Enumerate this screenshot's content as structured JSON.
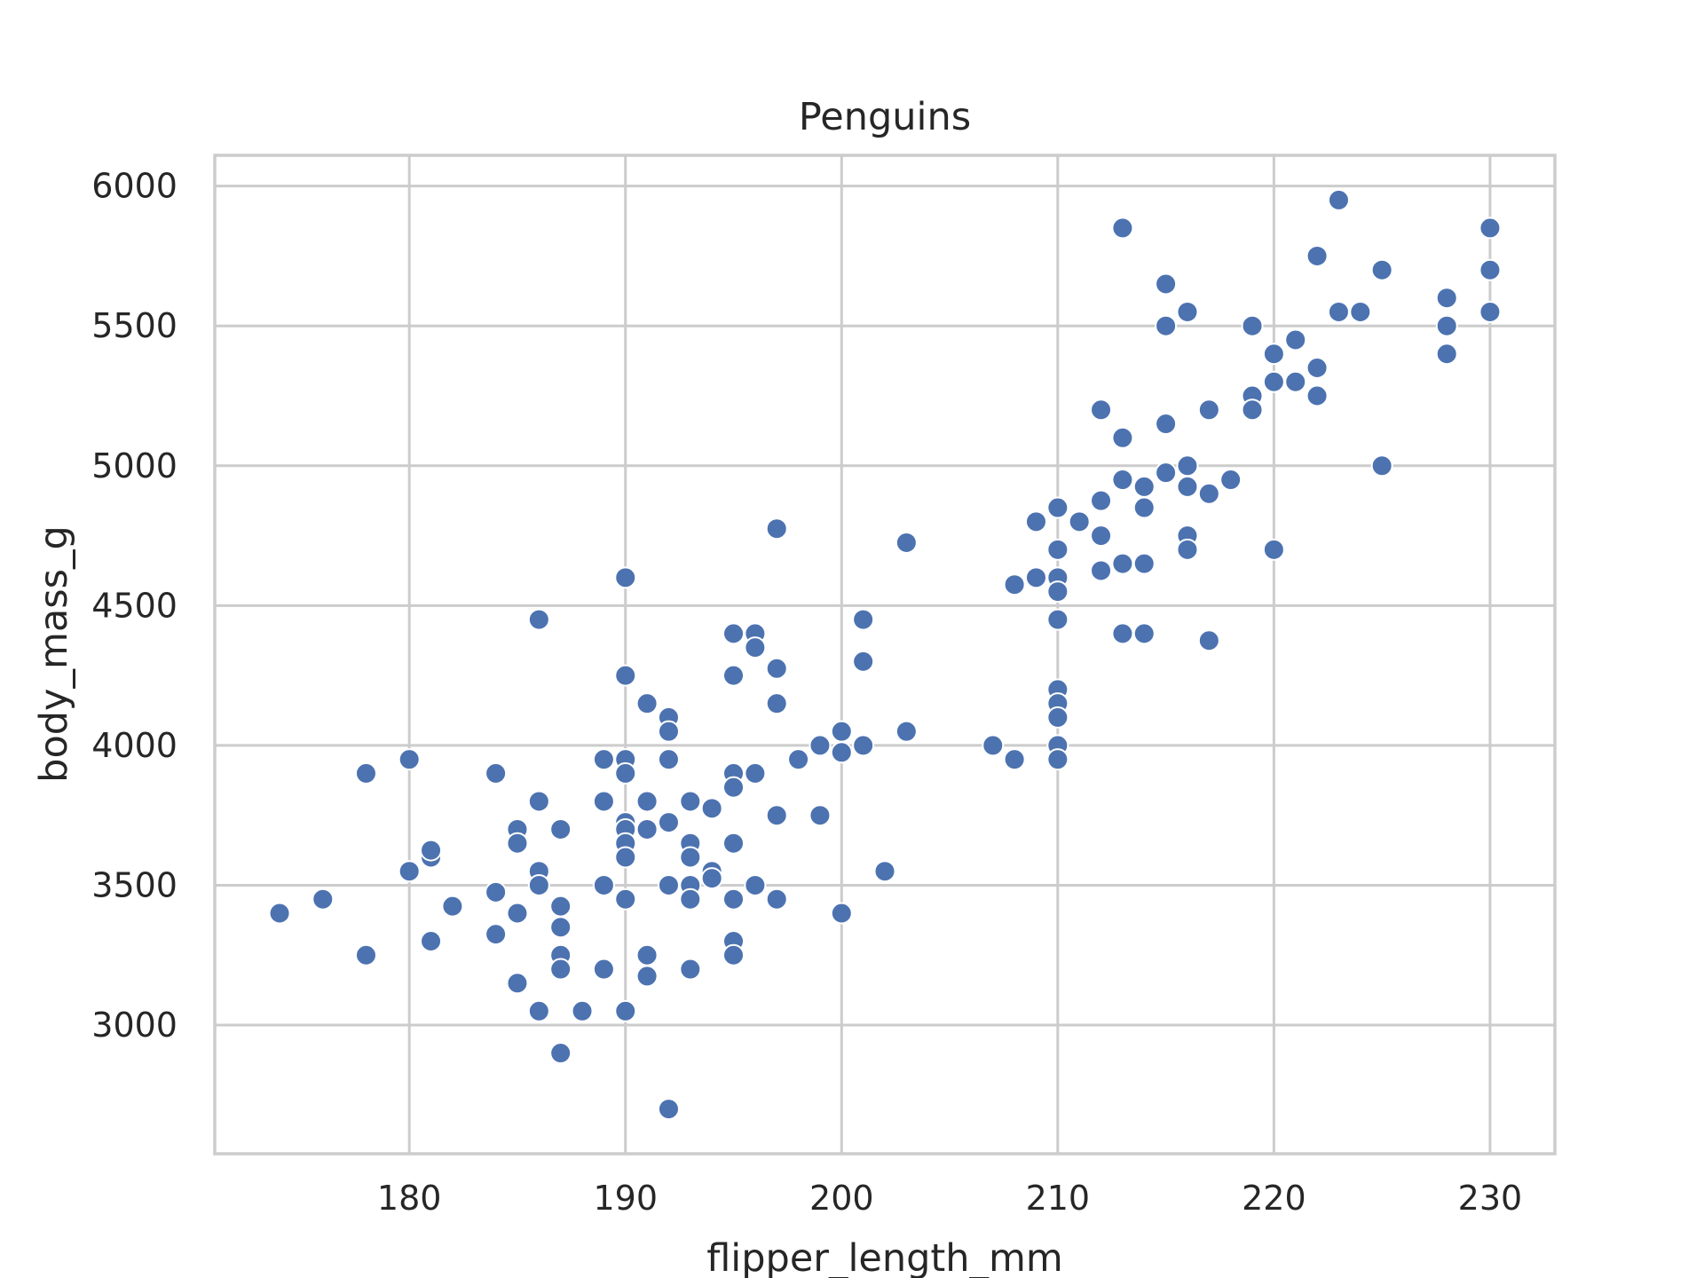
{
  "chart_data": {
    "type": "scatter",
    "title": "Penguins",
    "xlabel": "flipper_length_mm",
    "ylabel": "body_mass_g",
    "xlim": [
      171,
      233
    ],
    "ylim": [
      2540,
      6110
    ],
    "xticks": [
      180,
      190,
      200,
      210,
      220,
      230
    ],
    "yticks": [
      3000,
      3500,
      4000,
      4500,
      5000,
      5500,
      6000
    ],
    "grid": true,
    "legend": "none",
    "color": "#4c72b0",
    "series": [
      {
        "points": [
          [
            174,
            3400
          ],
          [
            176,
            3450
          ],
          [
            178,
            3900
          ],
          [
            178,
            3250
          ],
          [
            180,
            3950
          ],
          [
            180,
            3550
          ],
          [
            181,
            3600
          ],
          [
            181,
            3625
          ],
          [
            181,
            3300
          ],
          [
            182,
            3425
          ],
          [
            184,
            3900
          ],
          [
            184,
            3475
          ],
          [
            184,
            3325
          ],
          [
            185,
            3700
          ],
          [
            185,
            3650
          ],
          [
            185,
            3400
          ],
          [
            185,
            3150
          ],
          [
            186,
            4450
          ],
          [
            186,
            3800
          ],
          [
            186,
            3550
          ],
          [
            186,
            3500
          ],
          [
            186,
            3050
          ],
          [
            187,
            3700
          ],
          [
            187,
            3425
          ],
          [
            187,
            3350
          ],
          [
            187,
            3250
          ],
          [
            187,
            3200
          ],
          [
            187,
            2900
          ],
          [
            188,
            3050
          ],
          [
            189,
            3950
          ],
          [
            189,
            3800
          ],
          [
            189,
            3500
          ],
          [
            189,
            3200
          ],
          [
            190,
            4600
          ],
          [
            190,
            4250
          ],
          [
            190,
            3950
          ],
          [
            190,
            3900
          ],
          [
            190,
            3725
          ],
          [
            190,
            3700
          ],
          [
            190,
            3650
          ],
          [
            190,
            3600
          ],
          [
            190,
            3450
          ],
          [
            190,
            3050
          ],
          [
            191,
            4150
          ],
          [
            191,
            3800
          ],
          [
            191,
            3700
          ],
          [
            191,
            3250
          ],
          [
            191,
            3175
          ],
          [
            192,
            4100
          ],
          [
            192,
            4050
          ],
          [
            192,
            3950
          ],
          [
            192,
            3725
          ],
          [
            192,
            3500
          ],
          [
            192,
            2700
          ],
          [
            193,
            3800
          ],
          [
            193,
            3650
          ],
          [
            193,
            3600
          ],
          [
            193,
            3500
          ],
          [
            193,
            3450
          ],
          [
            193,
            3200
          ],
          [
            194,
            3775
          ],
          [
            194,
            3550
          ],
          [
            194,
            3525
          ],
          [
            195,
            4400
          ],
          [
            195,
            4250
          ],
          [
            195,
            3900
          ],
          [
            195,
            3850
          ],
          [
            195,
            3650
          ],
          [
            195,
            3450
          ],
          [
            195,
            3300
          ],
          [
            195,
            3250
          ],
          [
            196,
            4400
          ],
          [
            196,
            4350
          ],
          [
            196,
            3900
          ],
          [
            196,
            3500
          ],
          [
            197,
            4775
          ],
          [
            197,
            4275
          ],
          [
            197,
            4150
          ],
          [
            197,
            3750
          ],
          [
            197,
            3450
          ],
          [
            198,
            3950
          ],
          [
            199,
            4000
          ],
          [
            199,
            3750
          ],
          [
            200,
            4050
          ],
          [
            200,
            3975
          ],
          [
            200,
            3400
          ],
          [
            201,
            4450
          ],
          [
            201,
            4300
          ],
          [
            201,
            4000
          ],
          [
            202,
            3550
          ],
          [
            203,
            4725
          ],
          [
            203,
            4050
          ],
          [
            207,
            4000
          ],
          [
            208,
            4575
          ],
          [
            208,
            3950
          ],
          [
            209,
            4800
          ],
          [
            209,
            4600
          ],
          [
            210,
            4850
          ],
          [
            210,
            4700
          ],
          [
            210,
            4600
          ],
          [
            210,
            4550
          ],
          [
            210,
            4450
          ],
          [
            210,
            4200
          ],
          [
            210,
            4150
          ],
          [
            210,
            4100
          ],
          [
            210,
            4000
          ],
          [
            210,
            3950
          ],
          [
            211,
            4800
          ],
          [
            212,
            5200
          ],
          [
            212,
            4875
          ],
          [
            212,
            4750
          ],
          [
            212,
            4625
          ],
          [
            213,
            5850
          ],
          [
            213,
            5100
          ],
          [
            213,
            4950
          ],
          [
            213,
            4650
          ],
          [
            213,
            4400
          ],
          [
            214,
            4925
          ],
          [
            214,
            4850
          ],
          [
            214,
            4650
          ],
          [
            214,
            4400
          ],
          [
            215,
            5650
          ],
          [
            215,
            5500
          ],
          [
            215,
            5150
          ],
          [
            215,
            4975
          ],
          [
            216,
            5550
          ],
          [
            216,
            5000
          ],
          [
            216,
            4925
          ],
          [
            216,
            4750
          ],
          [
            216,
            4700
          ],
          [
            217,
            5200
          ],
          [
            217,
            4900
          ],
          [
            217,
            4375
          ],
          [
            218,
            4950
          ],
          [
            219,
            5500
          ],
          [
            219,
            5250
          ],
          [
            219,
            5200
          ],
          [
            220,
            5400
          ],
          [
            220,
            5300
          ],
          [
            220,
            4700
          ],
          [
            221,
            5450
          ],
          [
            221,
            5300
          ],
          [
            222,
            5750
          ],
          [
            222,
            5350
          ],
          [
            222,
            5250
          ],
          [
            223,
            5950
          ],
          [
            223,
            5550
          ],
          [
            224,
            5550
          ],
          [
            225,
            5700
          ],
          [
            225,
            5000
          ],
          [
            228,
            5600
          ],
          [
            228,
            5500
          ],
          [
            228,
            5400
          ],
          [
            230,
            5850
          ],
          [
            230,
            5700
          ],
          [
            230,
            5550
          ]
        ]
      }
    ]
  }
}
